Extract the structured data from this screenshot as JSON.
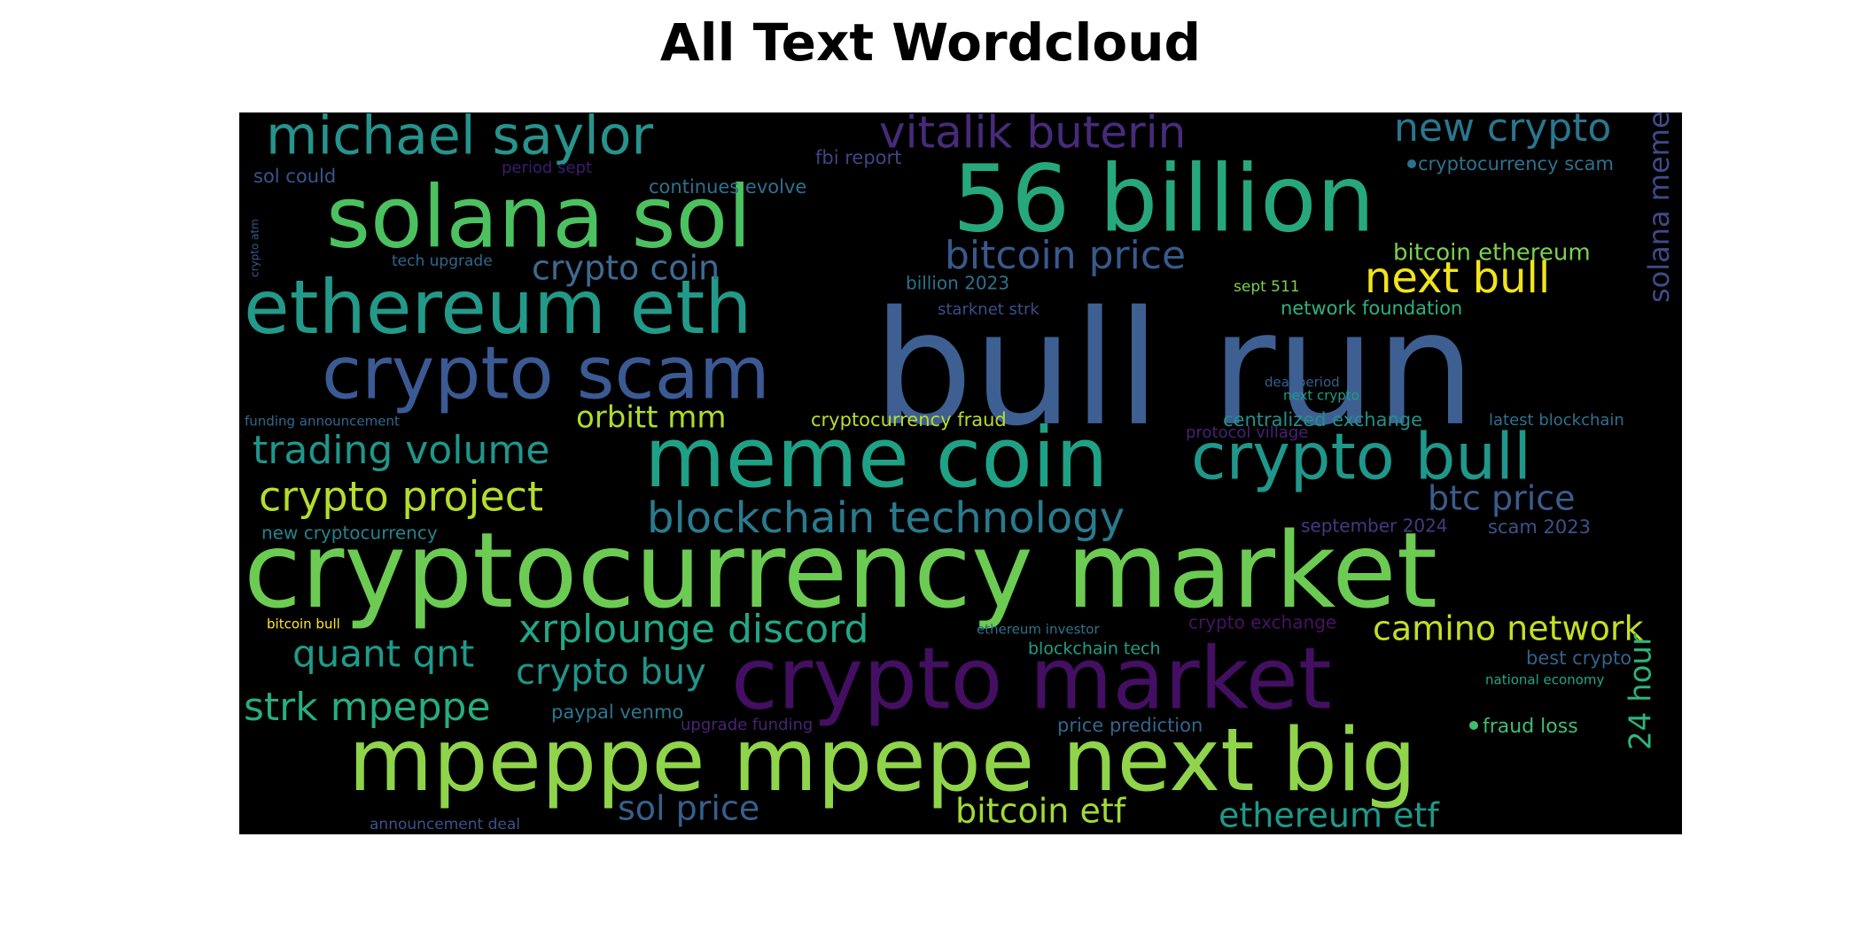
{
  "title": "All Text Wordcloud",
  "words": [
    {
      "text": "bull run",
      "color": "#3e5f92"
    },
    {
      "text": "cryptocurrency market",
      "color": "#6ccb52"
    },
    {
      "text": "56 billion",
      "color": "#27a87c"
    },
    {
      "text": "solana sol",
      "color": "#4cc160"
    },
    {
      "text": "mpeppe mpepe next big",
      "color": "#8fd44b"
    },
    {
      "text": "crypto market",
      "color": "#440f62"
    },
    {
      "text": "meme coin",
      "color": "#1fa186"
    },
    {
      "text": "ethereum eth",
      "color": "#239a89"
    },
    {
      "text": "crypto scam",
      "color": "#3b5a94"
    },
    {
      "text": "crypto bull",
      "color": "#20978b"
    },
    {
      "text": "michael saylor",
      "color": "#26938c"
    },
    {
      "text": "vitalik buterin",
      "color": "#472b7a"
    },
    {
      "text": "new crypto",
      "color": "#2a768e"
    },
    {
      "text": "blockchain technology",
      "color": "#2a7a8e"
    },
    {
      "text": "crypto project",
      "color": "#b5dd2b"
    },
    {
      "text": "trading volume",
      "color": "#1f968b"
    },
    {
      "text": "bitcoin price",
      "color": "#38598c"
    },
    {
      "text": "next bull",
      "color": "#f0e41b"
    },
    {
      "text": "xrplounge discord",
      "color": "#22a785"
    },
    {
      "text": "camino network",
      "color": "#c3df25"
    },
    {
      "text": "quant qnt",
      "color": "#1e9b8a"
    },
    {
      "text": "crypto buy",
      "color": "#1f958b"
    },
    {
      "text": "strk mpeppe",
      "color": "#26ad81"
    },
    {
      "text": "crypto coin",
      "color": "#3d6a91"
    },
    {
      "text": "orbitt mm",
      "color": "#addc30"
    },
    {
      "text": "btc price",
      "color": "#3a5c8c"
    },
    {
      "text": "sol price",
      "color": "#35608d"
    },
    {
      "text": "bitcoin etf",
      "color": "#a2da37"
    },
    {
      "text": "ethereum etf",
      "color": "#1f998a"
    },
    {
      "text": "solana meme",
      "color": "#3e4a89"
    },
    {
      "text": "24 hour",
      "color": "#2fb47c"
    },
    {
      "text": "bitcoin ethereum",
      "color": "#7ad151"
    },
    {
      "text": "cryptocurrency scam",
      "color": "#2c728e"
    },
    {
      "text": "continues evolve",
      "color": "#2d718e"
    },
    {
      "text": "fbi report",
      "color": "#414487"
    },
    {
      "text": "sol could",
      "color": "#39568c"
    },
    {
      "text": "period sept",
      "color": "#3b1c70"
    },
    {
      "text": "tech upgrade",
      "color": "#31678e"
    },
    {
      "text": "crypto atm",
      "color": "#365c8d"
    },
    {
      "text": "billion 2023",
      "color": "#2c728e"
    },
    {
      "text": "starknet strk",
      "color": "#3e4c8a"
    },
    {
      "text": "sept 511",
      "color": "#7ad151"
    },
    {
      "text": "network foundation",
      "color": "#2db27d"
    },
    {
      "text": "cryptocurrency fraud",
      "color": "#b8de29"
    },
    {
      "text": "centralized exchange",
      "color": "#21918c"
    },
    {
      "text": "latest blockchain",
      "color": "#2c728e"
    },
    {
      "text": "protocol village",
      "color": "#482173"
    },
    {
      "text": "deal period",
      "color": "#355f8d"
    },
    {
      "text": "next crypto",
      "color": "#1e9c89"
    },
    {
      "text": "funding announcement",
      "color": "#31688e"
    },
    {
      "text": "september 2024",
      "color": "#443983"
    },
    {
      "text": "scam 2023",
      "color": "#3b528b"
    },
    {
      "text": "new cryptocurrency",
      "color": "#25838e"
    },
    {
      "text": "bitcoin bull",
      "color": "#fde725"
    },
    {
      "text": "ethereum investor",
      "color": "#2c728e"
    },
    {
      "text": "crypto exchange",
      "color": "#471365"
    },
    {
      "text": "blockchain tech",
      "color": "#1f9e89"
    },
    {
      "text": "best crypto",
      "color": "#33628d"
    },
    {
      "text": "national economy",
      "color": "#21a685"
    },
    {
      "text": "paypal venmo",
      "color": "#2a788e"
    },
    {
      "text": "upgrade funding",
      "color": "#482475"
    },
    {
      "text": "price prediction",
      "color": "#31668e"
    },
    {
      "text": "fraud loss",
      "color": "#40bd72"
    },
    {
      "text": "announcement deal",
      "color": "#3b528b"
    }
  ]
}
